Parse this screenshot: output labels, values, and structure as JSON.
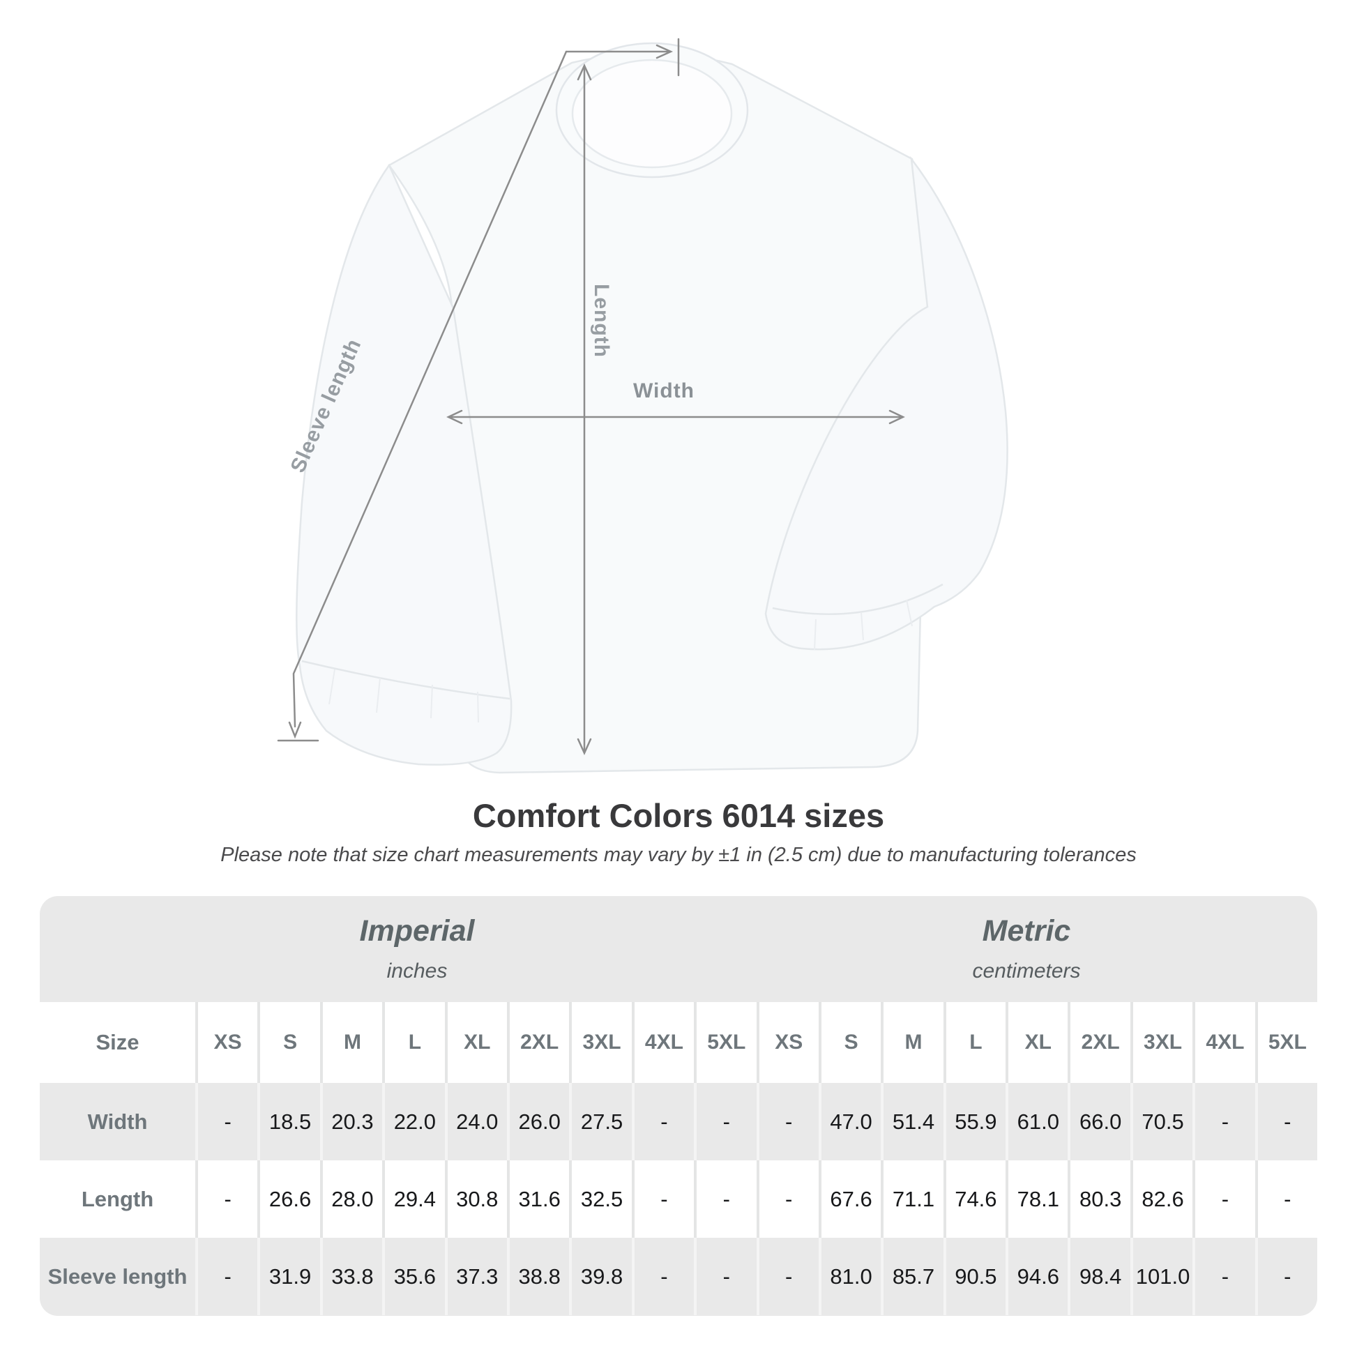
{
  "diagram": {
    "labels": {
      "sleeve_length": "Sleeve length",
      "length": "Length",
      "width": "Width"
    }
  },
  "title": "Comfort Colors 6014 sizes",
  "subtitle": "Please note that size chart measurements may vary by ±1 in (2.5 cm) due to manufacturing tolerances",
  "table": {
    "size_header_label": "Size",
    "sizes": [
      "XS",
      "S",
      "M",
      "L",
      "XL",
      "2XL",
      "3XL",
      "4XL",
      "5XL"
    ],
    "unit_groups": [
      {
        "name": "Imperial",
        "unit": "inches"
      },
      {
        "name": "Metric",
        "unit": "centimeters"
      }
    ],
    "rows": [
      {
        "label": "Width",
        "imperial": [
          "-",
          "18.5",
          "20.3",
          "22.0",
          "24.0",
          "26.0",
          "27.5",
          "-",
          "-"
        ],
        "metric": [
          "-",
          "47.0",
          "51.4",
          "55.9",
          "61.0",
          "66.0",
          "70.5",
          "-",
          "-"
        ]
      },
      {
        "label": "Length",
        "imperial": [
          "-",
          "26.6",
          "28.0",
          "29.4",
          "30.8",
          "31.6",
          "32.5",
          "-",
          "-"
        ],
        "metric": [
          "-",
          "67.6",
          "71.1",
          "74.6",
          "78.1",
          "80.3",
          "82.6",
          "-",
          "-"
        ]
      },
      {
        "label": "Sleeve length",
        "imperial": [
          "-",
          "31.9",
          "33.8",
          "35.6",
          "37.3",
          "38.8",
          "39.8",
          "-",
          "-"
        ],
        "metric": [
          "-",
          "81.0",
          "85.7",
          "90.5",
          "94.6",
          "98.4",
          "101.0",
          "-",
          "-"
        ]
      }
    ]
  },
  "chart_data": {
    "type": "table",
    "title": "Comfort Colors 6014 sizes",
    "note": "Please note that size chart measurements may vary by ±1 in (2.5 cm) due to manufacturing tolerances",
    "columns": [
      "XS",
      "S",
      "M",
      "L",
      "XL",
      "2XL",
      "3XL",
      "4XL",
      "5XL"
    ],
    "units": [
      "inches",
      "centimeters"
    ],
    "rows": [
      {
        "label": "Width",
        "inches": [
          null,
          18.5,
          20.3,
          22.0,
          24.0,
          26.0,
          27.5,
          null,
          null
        ],
        "centimeters": [
          null,
          47.0,
          51.4,
          55.9,
          61.0,
          66.0,
          70.5,
          null,
          null
        ]
      },
      {
        "label": "Length",
        "inches": [
          null,
          26.6,
          28.0,
          29.4,
          30.8,
          31.6,
          32.5,
          null,
          null
        ],
        "centimeters": [
          null,
          67.6,
          71.1,
          74.6,
          78.1,
          80.3,
          82.6,
          null,
          null
        ]
      },
      {
        "label": "Sleeve length",
        "inches": [
          null,
          31.9,
          33.8,
          35.6,
          37.3,
          38.8,
          39.8,
          null,
          null
        ],
        "centimeters": [
          null,
          81.0,
          85.7,
          90.5,
          94.6,
          98.4,
          101.0,
          null,
          null
        ]
      }
    ]
  },
  "colors": {
    "table_band": "#e9e9e9",
    "dimension_line": "#8c8c8c",
    "diagram_label": "#979da2",
    "title_text": "#39393b",
    "header_text": "#5d6669",
    "value_text": "#17181a"
  }
}
